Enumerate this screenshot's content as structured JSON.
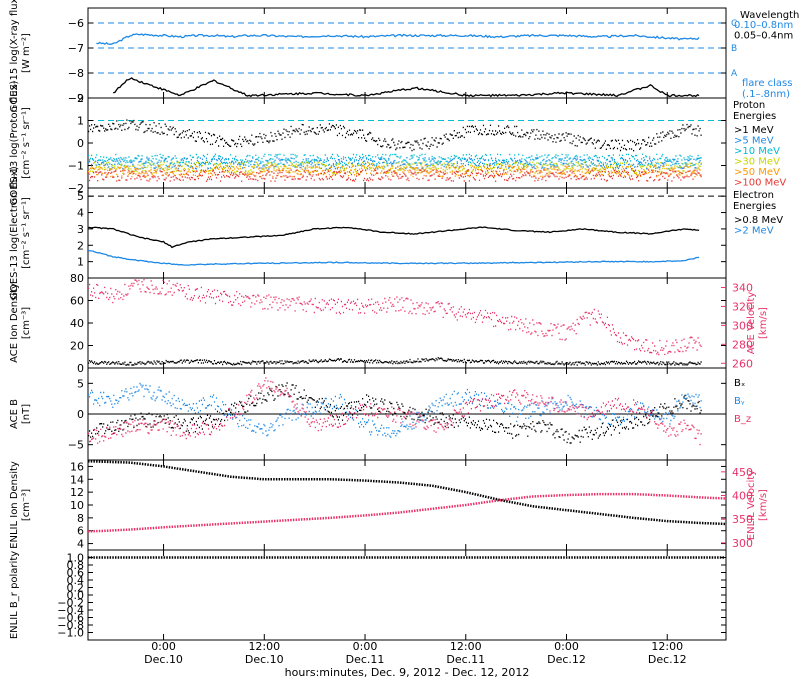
{
  "figure": {
    "xaxis_title": "hours:minutes, Dec.  9, 2012 - Dec. 12, 2012",
    "time_ticks": [
      {
        "hour": 0,
        "label": "0:00",
        "day": "Dec.10"
      },
      {
        "hour": 12,
        "label": "12:00",
        "day": "Dec.10"
      },
      {
        "hour": 24,
        "label": "0:00",
        "day": "Dec.11"
      },
      {
        "hour": 36,
        "label": "12:00",
        "day": "Dec.11"
      },
      {
        "hour": 48,
        "label": "0:00",
        "day": "Dec.12"
      },
      {
        "hour": 60,
        "label": "12:00",
        "day": "Dec.12"
      }
    ],
    "time_range_hours": [
      -9,
      67
    ],
    "colors": {
      "axis": "#000000",
      "blue": "#1e88e5",
      "cyan": "#00bcd4",
      "pink": "#e8336a",
      "dash_blue": "#1e88e5"
    }
  },
  "chart_data": [
    {
      "type": "line",
      "ylabel": "GOES-15 log(X-ray flux)",
      "yunits": "[W m⁻²]",
      "ylim": [
        -9,
        -5.4
      ],
      "yticks": [
        -6,
        -7,
        -8,
        -9
      ],
      "flare_class_levels": [
        {
          "label": "C",
          "value": -6
        },
        {
          "label": "B",
          "value": -7
        },
        {
          "label": "A",
          "value": -8
        }
      ],
      "legend_title": "Wavelength",
      "legend": [
        {
          "name": "0.10–0.8nm",
          "color": "#1e88e5"
        },
        {
          "name": "0.05–0.4nm",
          "color": "#000000"
        }
      ],
      "legend_note_1": "flare class",
      "legend_note_2": "(.1–.8nm)",
      "series": [
        {
          "name": "0.10–0.8nm",
          "color": "#1e88e5",
          "x": [
            -8,
            -6,
            -4,
            -3,
            0,
            2,
            4,
            6,
            8,
            10,
            12,
            16,
            20,
            24,
            28,
            32,
            36,
            40,
            44,
            48,
            52,
            56,
            60,
            62,
            64
          ],
          "y": [
            -6.8,
            -6.85,
            -6.5,
            -6.45,
            -6.5,
            -6.55,
            -6.5,
            -6.5,
            -6.55,
            -6.5,
            -6.5,
            -6.55,
            -6.5,
            -6.55,
            -6.5,
            -6.5,
            -6.5,
            -6.55,
            -6.5,
            -6.5,
            -6.55,
            -6.5,
            -6.6,
            -6.65,
            -6.6
          ]
        },
        {
          "name": "0.05–0.4nm",
          "color": "#000000",
          "x": [
            -6,
            -4,
            2,
            6,
            10,
            18,
            24,
            30,
            36,
            42,
            48,
            54,
            58,
            60,
            64
          ],
          "y": [
            -8.8,
            -8.2,
            -8.9,
            -8.3,
            -8.9,
            -8.8,
            -8.9,
            -8.6,
            -8.9,
            -8.9,
            -8.8,
            -8.9,
            -8.5,
            -8.9,
            -8.9
          ]
        }
      ]
    },
    {
      "type": "scatter",
      "ylabel": "GOES-13 log(Proton flux)",
      "yunits": "[cm⁻² s⁻¹ sr⁻¹]",
      "ylim": [
        -2,
        2
      ],
      "yticks": [
        2,
        1,
        0,
        -1,
        -2
      ],
      "reference_line": 1,
      "legend_title_1": "Proton",
      "legend_title_2": "Energies",
      "legend": [
        {
          "name": ">1 MeV",
          "color": "#000000"
        },
        {
          "name": ">5 MeV",
          "color": "#1e88e5"
        },
        {
          "name": ">10 MeV",
          "color": "#00bcd4"
        },
        {
          "name": ">30 MeV",
          "color": "#c8d400"
        },
        {
          "name": ">50 MeV",
          "color": "#ff9800"
        },
        {
          "name": ">100 MeV",
          "color": "#e53935"
        }
      ],
      "series": [
        {
          "name": ">1 MeV",
          "color": "#000000",
          "x": [
            -9,
            -4,
            0,
            4,
            8,
            12,
            16,
            20,
            24,
            28,
            32,
            36,
            40,
            44,
            48,
            52,
            56,
            60,
            62,
            64
          ],
          "y": [
            0.6,
            0.8,
            0.6,
            0.3,
            0,
            0.2,
            0.6,
            0.6,
            0.3,
            -0.15,
            0,
            0.5,
            0.6,
            0.4,
            0.2,
            -0.1,
            -0.1,
            0.3,
            0.6,
            0.5
          ]
        },
        {
          "name": ">5 MeV",
          "color": "#1e88e5",
          "x": [
            -9,
            64
          ],
          "y": [
            -0.9,
            -0.9
          ]
        },
        {
          "name": ">10 MeV",
          "color": "#00bcd4",
          "x": [
            -9,
            64
          ],
          "y": [
            -0.75,
            -0.75
          ]
        },
        {
          "name": ">30 MeV",
          "color": "#c8d400",
          "x": [
            -9,
            64
          ],
          "y": [
            -1.1,
            -1.1
          ]
        },
        {
          "name": ">50 MeV",
          "color": "#ff9800",
          "x": [
            -9,
            64
          ],
          "y": [
            -1.25,
            -1.25
          ]
        },
        {
          "name": ">100 MeV",
          "color": "#e53935",
          "x": [
            -9,
            64
          ],
          "y": [
            -1.45,
            -1.45
          ]
        }
      ]
    },
    {
      "type": "line",
      "ylabel": "GOES-13 log(Electron flux)",
      "yunits": "[cm⁻² s⁻¹ sr⁻¹]",
      "ylim": [
        0,
        5.5
      ],
      "yticks": [
        5,
        4,
        3,
        2,
        1
      ],
      "reference_line": 5,
      "legend_title_1": "Electron",
      "legend_title_2": "Energies",
      "legend": [
        {
          "name": ">0.8 MeV",
          "color": "#000000"
        },
        {
          "name": ">2 MeV",
          "color": "#1e88e5"
        }
      ],
      "series": [
        {
          "name": ">0.8 MeV",
          "color": "#000000",
          "x": [
            -9,
            -6,
            -3,
            0,
            1,
            3,
            6,
            10,
            14,
            18,
            22,
            26,
            30,
            34,
            38,
            42,
            46,
            50,
            54,
            58,
            62,
            64
          ],
          "y": [
            3.1,
            3.0,
            2.5,
            2.2,
            1.9,
            2.2,
            2.4,
            2.5,
            2.6,
            3.0,
            3.1,
            2.8,
            2.7,
            2.9,
            3.1,
            2.9,
            2.8,
            3.0,
            2.8,
            2.7,
            3.0,
            2.9
          ]
        },
        {
          "name": ">2 MeV",
          "color": "#1e88e5",
          "x": [
            -9,
            -6,
            -2,
            2,
            6,
            12,
            20,
            28,
            36,
            44,
            52,
            58,
            62,
            64
          ],
          "y": [
            1.7,
            1.3,
            1.0,
            0.8,
            0.85,
            0.9,
            0.95,
            0.9,
            0.9,
            0.95,
            1.0,
            1.0,
            1.05,
            1.3
          ]
        }
      ]
    },
    {
      "type": "scatter",
      "ylabel": "ACE Ion Density",
      "yunits": "[cm⁻³]",
      "ylim": [
        0,
        80
      ],
      "yticks": [
        80,
        60,
        40,
        20,
        0
      ],
      "y2label": "ACE Velocity",
      "y2units": "[km/s]",
      "y2lim": [
        255,
        350
      ],
      "y2ticks": [
        340,
        320,
        300,
        280,
        260
      ],
      "series": [
        {
          "name": "Ion Density",
          "color": "#000000",
          "axis": "left",
          "x": [
            -9,
            -4,
            0,
            4,
            8,
            12,
            16,
            20,
            24,
            28,
            32,
            36,
            40,
            44,
            48,
            52,
            56,
            60,
            64
          ],
          "y": [
            5,
            4,
            5,
            6,
            4,
            5,
            5,
            7,
            6,
            5,
            8,
            6,
            5,
            5,
            4,
            4,
            5,
            4,
            4
          ]
        },
        {
          "name": "Velocity",
          "color": "#e8336a",
          "axis": "right",
          "x": [
            -9,
            -6,
            -3,
            0,
            3,
            6,
            9,
            12,
            16,
            20,
            24,
            28,
            32,
            36,
            40,
            44,
            48,
            50,
            52,
            54,
            56,
            58,
            60,
            62,
            64
          ],
          "y": [
            338,
            330,
            342,
            340,
            335,
            330,
            328,
            325,
            322,
            320,
            320,
            322,
            318,
            312,
            305,
            298,
            292,
            305,
            312,
            288,
            280,
            278,
            276,
            278,
            283
          ]
        }
      ]
    },
    {
      "type": "line",
      "ylabel": "ACE B",
      "yunits": "[nT]",
      "ylim": [
        -7.5,
        7.5
      ],
      "yticks": [
        5,
        0,
        -5
      ],
      "legend": [
        {
          "name": "Bₓ",
          "color": "#000000"
        },
        {
          "name": "Bᵧ",
          "color": "#1e88e5"
        },
        {
          "name": "B_z",
          "color": "#e8336a"
        }
      ],
      "series": [
        {
          "name": "Bₓ",
          "color": "#000000",
          "x": [
            -9,
            -6,
            -3,
            0,
            3,
            6,
            9,
            12,
            15,
            18,
            21,
            24,
            27,
            30,
            33,
            36,
            39,
            42,
            45,
            48,
            51,
            54,
            57,
            60,
            62,
            64
          ],
          "y": [
            -3,
            -2,
            -1,
            -1,
            -2,
            -1,
            1,
            3,
            4,
            2,
            0,
            2,
            1,
            0,
            -1,
            -1,
            -2,
            -3,
            -2,
            -4,
            -3,
            -2,
            -1,
            1,
            2,
            1
          ]
        },
        {
          "name": "Bᵧ",
          "color": "#1e88e5",
          "x": [
            -9,
            -6,
            -3,
            0,
            3,
            6,
            9,
            12,
            15,
            18,
            21,
            24,
            27,
            30,
            33,
            36,
            39,
            42,
            45,
            48,
            51,
            54,
            57,
            60,
            62,
            64
          ],
          "y": [
            3,
            2,
            4,
            3,
            1,
            2,
            -1,
            -3,
            0,
            1,
            2,
            -2,
            -3,
            -1,
            2,
            3,
            2,
            0,
            1,
            2,
            0,
            -1,
            1,
            -1,
            3,
            2
          ]
        },
        {
          "name": "B_z",
          "color": "#e8336a",
          "x": [
            -9,
            -6,
            -3,
            0,
            3,
            6,
            9,
            12,
            15,
            18,
            21,
            24,
            27,
            30,
            33,
            36,
            39,
            42,
            45,
            48,
            51,
            54,
            57,
            60,
            62,
            64
          ],
          "y": [
            -4,
            -3,
            -2,
            -2,
            -3,
            -2,
            1,
            5,
            3,
            -2,
            -1,
            1,
            0,
            -1,
            -2,
            1,
            2,
            3,
            2,
            1,
            0,
            2,
            1,
            -3,
            -2,
            -4
          ]
        }
      ]
    },
    {
      "type": "line",
      "ylabel": "ENLIL Ion Density",
      "yunits": "[cm⁻³]",
      "ylim": [
        3,
        17
      ],
      "yticks": [
        16,
        14,
        12,
        10,
        8,
        6,
        4
      ],
      "y2label": "ENLIL Velocity",
      "y2units": "[km/s]",
      "y2lim": [
        285,
        475
      ],
      "y2ticks": [
        450,
        400,
        350,
        300
      ],
      "series": [
        {
          "name": "Ion Density",
          "color": "#000000",
          "axis": "left",
          "x": [
            -9,
            -4,
            0,
            4,
            8,
            12,
            16,
            20,
            24,
            28,
            32,
            36,
            40,
            44,
            48,
            52,
            56,
            60,
            64,
            68
          ],
          "y": [
            16.8,
            16.6,
            16,
            15.2,
            14.4,
            14,
            14,
            14,
            13.8,
            13.5,
            13,
            12,
            10.8,
            9.8,
            9.2,
            8.6,
            8,
            7.5,
            7.2,
            7
          ]
        },
        {
          "name": "Velocity",
          "color": "#e8336a",
          "axis": "right",
          "x": [
            -9,
            -4,
            0,
            4,
            8,
            12,
            16,
            20,
            24,
            28,
            32,
            36,
            40,
            44,
            48,
            52,
            56,
            60,
            64,
            68
          ],
          "y": [
            324,
            328,
            333,
            337,
            341,
            345,
            349,
            353,
            358,
            364,
            372,
            380,
            390,
            398,
            401,
            403,
            403,
            400,
            396,
            393
          ]
        }
      ]
    },
    {
      "type": "line",
      "ylabel": "ENLIL B_r polarity",
      "ylim": [
        -1.2,
        1.2
      ],
      "yticks": [
        1.0,
        0.8,
        0.6,
        0.4,
        0.2,
        0.0,
        -0.2,
        -0.4,
        -0.6,
        -0.8,
        -1.0
      ],
      "series": [
        {
          "name": "B_r polarity",
          "color": "#000000",
          "x": [
            -9,
            68
          ],
          "y": [
            1.0,
            1.0
          ]
        }
      ]
    }
  ]
}
